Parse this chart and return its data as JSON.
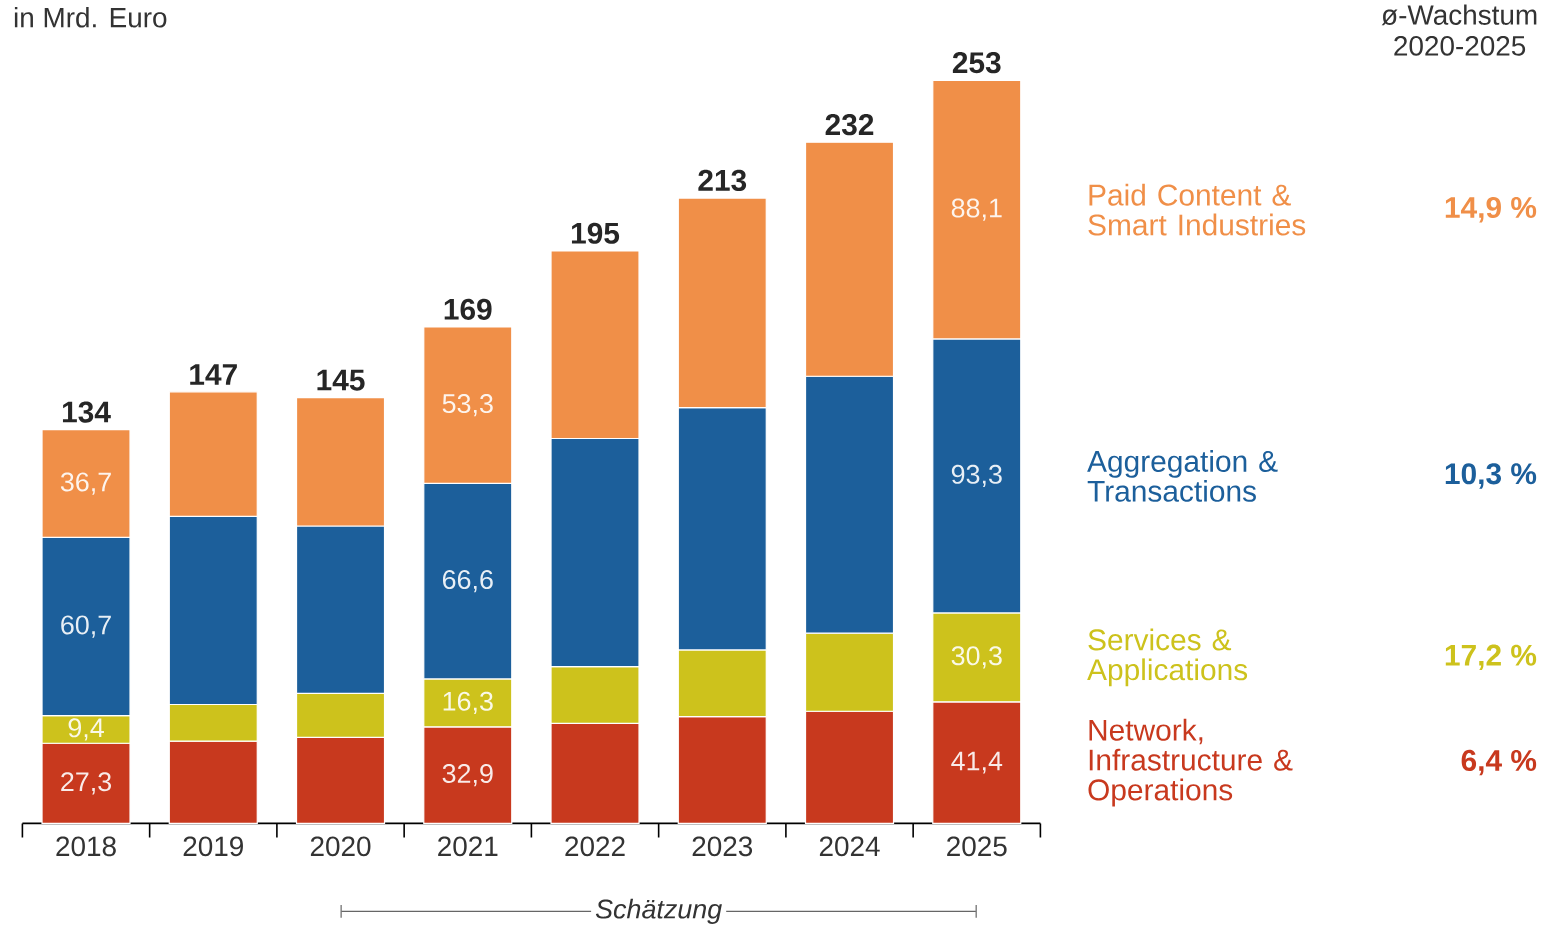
{
  "chart_data": {
    "type": "bar",
    "stacked": true,
    "ylabel": "in Mrd. Euro",
    "legend_title": "ø-Wachstum 2020-2025",
    "categories": [
      "2018",
      "2019",
      "2020",
      "2021",
      "2022",
      "2023",
      "2024",
      "2025"
    ],
    "series": [
      {
        "name": "Network, Infrastructure & Operations",
        "color": "#c8391e",
        "values": [
          27.3,
          28.0,
          29.3,
          32.9,
          34.1,
          36.4,
          38.2,
          41.4
        ],
        "value_labels": [
          "27,3",
          null,
          null,
          "32,9",
          null,
          null,
          null,
          "41,4"
        ]
      },
      {
        "name": "Services & Applications",
        "color": "#cdc21c",
        "values": [
          9.4,
          12.5,
          15.0,
          16.3,
          19.3,
          22.7,
          26.6,
          30.3
        ],
        "value_labels": [
          "9,4",
          null,
          null,
          "16,3",
          null,
          null,
          null,
          "30,3"
        ]
      },
      {
        "name": "Aggregation & Transactions",
        "color": "#1c5f9b",
        "values": [
          60.7,
          64.1,
          57.0,
          66.6,
          77.7,
          82.5,
          87.5,
          93.3
        ],
        "value_labels": [
          "60,7",
          null,
          null,
          "66,6",
          null,
          null,
          null,
          "93,3"
        ]
      },
      {
        "name": "Paid Content & Smart Industries",
        "color": "#f08f48",
        "values": [
          36.7,
          42.4,
          43.7,
          53.3,
          63.9,
          71.4,
          79.7,
          88.1
        ],
        "value_labels": [
          "36,7",
          null,
          null,
          "53,3",
          null,
          null,
          null,
          "88,1"
        ]
      }
    ],
    "totals": [
      "134",
      "147",
      "145",
      "169",
      "195",
      "213",
      "232",
      "253"
    ],
    "annotations": [
      "6,4 %",
      "17,2 %",
      "10,3 %",
      "14,9 %",
      "Schätzung"
    ],
    "legend": "right",
    "tick_labels": "x"
  }
}
